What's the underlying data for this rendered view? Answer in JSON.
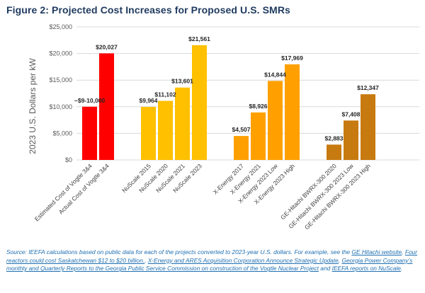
{
  "figure_title": "Figure 2: Projected Cost Increases for Proposed U.S. SMRs",
  "source": {
    "intro": "Source: IEEFA calculations based on public data for each of the projects converted to 2023-year U.S. dollars. For example, see the ",
    "link1": "GE Hitachi website",
    "sep1": ", ",
    "link2": "Four reactors could cost Saskatchewan $12 to $20 billion.",
    "sep2": ", ",
    "link3": "X-Energy and ARES Acquisition Corporation Announce Strategic Update",
    "sep3": ", ",
    "link4": "Georgia Power Company’s monthly and Quarterly Reports to the Georgia Public Service Commission on construction of the Vogtle Nuclear Project",
    "sep4": " and ",
    "link5": "IEEFA reports on NuScale",
    "end": "."
  },
  "chart_data": {
    "type": "bar",
    "title": "",
    "ylabel": "2023 U.S. Dollars per kW",
    "xlabel": "",
    "ylim": [
      0,
      25000
    ],
    "yticks": [
      0,
      5000,
      10000,
      15000,
      20000,
      25000
    ],
    "ytick_labels": [
      "$0",
      "$5,000",
      "$10,000",
      "$15,000",
      "$20,000",
      "$25,000"
    ],
    "grid": true,
    "legend": "none",
    "groups": [
      {
        "color": "#ff0000",
        "bars": [
          {
            "category": "Estimated Cost of Vogtle 3&4",
            "value": 10000,
            "label": "~$9-10,000"
          },
          {
            "category": "Actual Cost of Vogtle 3&4",
            "value": 20027,
            "label": "$20,027"
          }
        ]
      },
      {
        "color": "#ffc000",
        "bars": [
          {
            "category": "NuScale 2015",
            "value": 9964,
            "label": "$9,964"
          },
          {
            "category": "NuScale 2020",
            "value": 11102,
            "label": "$11,102"
          },
          {
            "category": "NuScale 2021",
            "value": 13601,
            "label": "$13,601"
          },
          {
            "category": "NuScale 2023",
            "value": 21561,
            "label": "$21,561"
          }
        ]
      },
      {
        "color": "#ffa000",
        "bars": [
          {
            "category": "X-Energy 2017",
            "value": 4507,
            "label": "$4,507"
          },
          {
            "category": "X-Energy 2021",
            "value": 8926,
            "label": "$8,926"
          },
          {
            "category": "X-Energy 2023 Low",
            "value": 14844,
            "label": "$14,844"
          },
          {
            "category": "X-Energy 2023 High",
            "value": 17969,
            "label": "$17,969"
          }
        ]
      },
      {
        "color": "#c77a0f",
        "bars": [
          {
            "category": "GE-Hitachi BWRX-300 2020",
            "value": 2883,
            "label": "$2,883"
          },
          {
            "category": "GE-Hitachi BWRX-300 2023 Low",
            "value": 7408,
            "label": "$7,408"
          },
          {
            "category": "GE-Hitachi BWRX-300 2023 High",
            "value": 12347,
            "label": "$12,347"
          }
        ]
      }
    ]
  }
}
